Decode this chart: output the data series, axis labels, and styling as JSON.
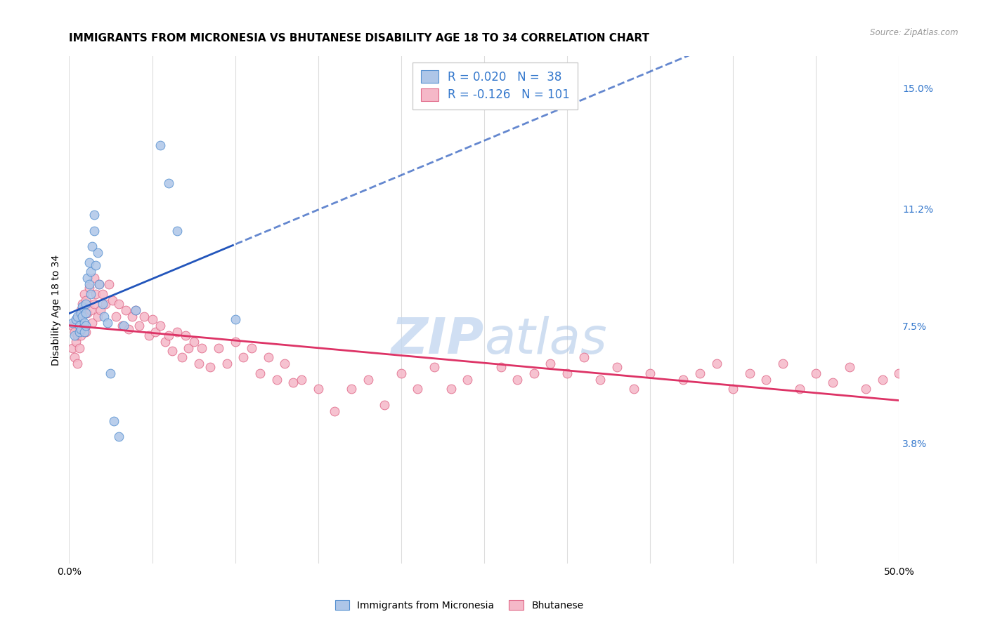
{
  "title": "IMMIGRANTS FROM MICRONESIA VS BHUTANESE DISABILITY AGE 18 TO 34 CORRELATION CHART",
  "source": "Source: ZipAtlas.com",
  "ylabel": "Disability Age 18 to 34",
  "xlim": [
    0.0,
    0.5
  ],
  "ylim": [
    0.0,
    0.16
  ],
  "ytick_vals": [
    0.038,
    0.075,
    0.112,
    0.15
  ],
  "ytick_labels": [
    "3.8%",
    "7.5%",
    "11.2%",
    "15.0%"
  ],
  "xtick_vals": [
    0.0,
    0.05,
    0.1,
    0.15,
    0.2,
    0.25,
    0.3,
    0.35,
    0.4,
    0.45,
    0.5
  ],
  "blue_R": 0.02,
  "blue_N": 38,
  "pink_R": -0.126,
  "pink_N": 101,
  "blue_color": "#aec6e8",
  "pink_color": "#f5b8c8",
  "blue_edge_color": "#5590d0",
  "pink_edge_color": "#e06888",
  "blue_line_color": "#2255bb",
  "pink_line_color": "#dd3366",
  "watermark_color": "#c5d8f0",
  "background_color": "#ffffff",
  "grid_color": "#dddddd",
  "blue_x": [
    0.002,
    0.003,
    0.004,
    0.005,
    0.006,
    0.006,
    0.007,
    0.007,
    0.008,
    0.008,
    0.009,
    0.009,
    0.01,
    0.01,
    0.01,
    0.011,
    0.012,
    0.012,
    0.013,
    0.013,
    0.014,
    0.015,
    0.015,
    0.016,
    0.017,
    0.018,
    0.02,
    0.021,
    0.023,
    0.025,
    0.027,
    0.03,
    0.033,
    0.04,
    0.055,
    0.06,
    0.065,
    0.1
  ],
  "blue_y": [
    0.076,
    0.072,
    0.077,
    0.078,
    0.075,
    0.073,
    0.079,
    0.074,
    0.081,
    0.078,
    0.073,
    0.076,
    0.082,
    0.079,
    0.075,
    0.09,
    0.095,
    0.088,
    0.092,
    0.085,
    0.1,
    0.11,
    0.105,
    0.094,
    0.098,
    0.088,
    0.082,
    0.078,
    0.076,
    0.06,
    0.045,
    0.04,
    0.075,
    0.08,
    0.132,
    0.12,
    0.105,
    0.077
  ],
  "pink_x": [
    0.002,
    0.002,
    0.003,
    0.003,
    0.004,
    0.004,
    0.005,
    0.005,
    0.006,
    0.006,
    0.007,
    0.007,
    0.008,
    0.008,
    0.009,
    0.009,
    0.01,
    0.01,
    0.011,
    0.012,
    0.013,
    0.014,
    0.015,
    0.015,
    0.016,
    0.017,
    0.018,
    0.019,
    0.02,
    0.022,
    0.024,
    0.026,
    0.028,
    0.03,
    0.032,
    0.034,
    0.036,
    0.038,
    0.04,
    0.042,
    0.045,
    0.048,
    0.05,
    0.052,
    0.055,
    0.058,
    0.06,
    0.062,
    0.065,
    0.068,
    0.07,
    0.072,
    0.075,
    0.078,
    0.08,
    0.085,
    0.09,
    0.095,
    0.1,
    0.105,
    0.11,
    0.115,
    0.12,
    0.125,
    0.13,
    0.135,
    0.14,
    0.15,
    0.16,
    0.17,
    0.18,
    0.19,
    0.2,
    0.21,
    0.22,
    0.23,
    0.24,
    0.26,
    0.27,
    0.28,
    0.29,
    0.3,
    0.31,
    0.32,
    0.33,
    0.34,
    0.35,
    0.37,
    0.38,
    0.39,
    0.4,
    0.41,
    0.42,
    0.43,
    0.44,
    0.45,
    0.46,
    0.47,
    0.48,
    0.49,
    0.5
  ],
  "pink_y": [
    0.075,
    0.068,
    0.073,
    0.065,
    0.077,
    0.07,
    0.072,
    0.063,
    0.078,
    0.068,
    0.08,
    0.072,
    0.082,
    0.074,
    0.085,
    0.075,
    0.083,
    0.073,
    0.079,
    0.087,
    0.08,
    0.076,
    0.09,
    0.082,
    0.085,
    0.078,
    0.088,
    0.08,
    0.085,
    0.082,
    0.088,
    0.083,
    0.078,
    0.082,
    0.075,
    0.08,
    0.074,
    0.078,
    0.08,
    0.075,
    0.078,
    0.072,
    0.077,
    0.073,
    0.075,
    0.07,
    0.072,
    0.067,
    0.073,
    0.065,
    0.072,
    0.068,
    0.07,
    0.063,
    0.068,
    0.062,
    0.068,
    0.063,
    0.07,
    0.065,
    0.068,
    0.06,
    0.065,
    0.058,
    0.063,
    0.057,
    0.058,
    0.055,
    0.048,
    0.055,
    0.058,
    0.05,
    0.06,
    0.055,
    0.062,
    0.055,
    0.058,
    0.062,
    0.058,
    0.06,
    0.063,
    0.06,
    0.065,
    0.058,
    0.062,
    0.055,
    0.06,
    0.058,
    0.06,
    0.063,
    0.055,
    0.06,
    0.058,
    0.063,
    0.055,
    0.06,
    0.057,
    0.062,
    0.055,
    0.058,
    0.06
  ]
}
